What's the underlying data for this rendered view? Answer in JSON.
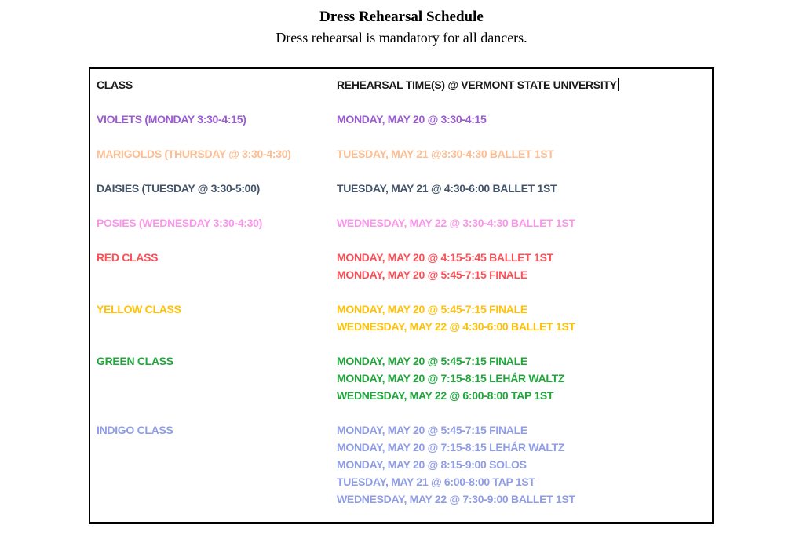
{
  "page": {
    "title": "Dress Rehearsal Schedule",
    "subtitle": "Dress rehearsal is mandatory for all dancers."
  },
  "table": {
    "headers": {
      "class": "CLASS",
      "times": "REHEARSAL TIME(S) @ VERMONT STATE UNIVERSITY"
    },
    "rows": [
      {
        "label": "VIOLETS (MONDAY 3:30-4:15)",
        "color": "#9a5cd0",
        "times": [
          "MONDAY, MAY 20 @ 3:30-4:15"
        ]
      },
      {
        "label": "MARIGOLDS (THURSDAY @ 3:30-4:30)",
        "color": "#fcbd92",
        "times": [
          "TUESDAY, MAY 21 @3:30-4:30 BALLET 1ST"
        ]
      },
      {
        "label": "DAISIES (TUESDAY @ 3:30-5:00)",
        "color": "#44546a",
        "times": [
          "TUESDAY, MAY 21 @ 4:30-6:00 BALLET 1ST"
        ]
      },
      {
        "label": "POSIES (WEDNESDAY 3:30-4:30)",
        "color": "#fa96e9",
        "times": [
          "WEDNESDAY, MAY 22 @ 3:30-4:30 BALLET 1ST"
        ]
      },
      {
        "label": "RED CLASS",
        "color": "#fa5056",
        "times": [
          "MONDAY, MAY 20 @ 4:15-5:45 BALLET 1ST",
          "MONDAY, MAY 20 @ 5:45-7:15 FINALE"
        ]
      },
      {
        "label": "YELLOW CLASS",
        "color": "#ffc008",
        "times": [
          "MONDAY, MAY 20 @ 5:45-7:15 FINALE",
          "WEDNESDAY, MAY 22 @ 4:30-6:00 BALLET 1ST"
        ]
      },
      {
        "label": "GREEN CLASS",
        "color": "#21a63c",
        "times": [
          "MONDAY, MAY 20 @ 5:45-7:15 FINALE",
          "MONDAY, MAY 20 @ 7:15-8:15 LEHÁR WALTZ",
          "WEDNESDAY, MAY 22 @ 6:00-8:00 TAP 1ST"
        ]
      },
      {
        "label": "INDIGO CLASS",
        "color": "#8f9de6",
        "times": [
          "MONDAY, MAY 20 @ 5:45-7:15 FINALE",
          "MONDAY, MAY 20 @ 7:15-8:15 LEHÁR WALTZ",
          "MONDAY, MAY 20 @ 8:15-9:00 SOLOS",
          "TUESDAY, MAY 21 @ 6:00-8:00 TAP 1ST",
          "WEDNESDAY, MAY 22 @ 7:30-9:00 BALLET 1ST"
        ]
      }
    ]
  }
}
